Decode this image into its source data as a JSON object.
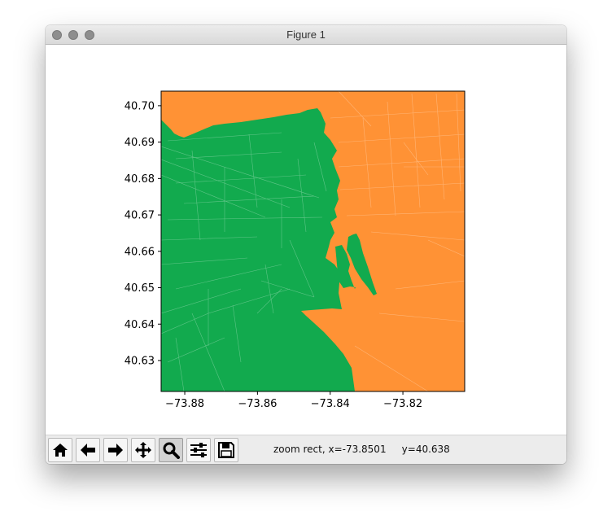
{
  "window": {
    "title": "Figure 1"
  },
  "toolbar": {
    "buttons": [
      {
        "name": "home-button",
        "icon": "home-icon"
      },
      {
        "name": "back-button",
        "icon": "arrow-left-icon"
      },
      {
        "name": "forward-button",
        "icon": "arrow-right-icon"
      },
      {
        "name": "pan-button",
        "icon": "move-icon"
      },
      {
        "name": "zoom-button",
        "icon": "magnifier-icon",
        "active": true
      },
      {
        "name": "subplots-button",
        "icon": "sliders-icon"
      },
      {
        "name": "save-button",
        "icon": "floppy-disk-icon"
      }
    ],
    "status_prefix": "zoom rect, x=-73.8501",
    "status_y": "y=40.638"
  },
  "colors": {
    "green": "#12AA4E",
    "orange": "#FF9235",
    "titlebar": "#e3e3e3",
    "toolbar": "#ececec"
  },
  "chart_data": {
    "type": "map",
    "xlabel": "",
    "ylabel": "",
    "xlim": [
      -73.8865,
      -73.803
    ],
    "ylim": [
      40.6215,
      40.704
    ],
    "x_ticks": [
      "−73.88",
      "−73.86",
      "−73.84",
      "−73.82"
    ],
    "x_tick_values": [
      -73.88,
      -73.86,
      -73.84,
      -73.82
    ],
    "y_ticks": [
      "40.63",
      "40.64",
      "40.65",
      "40.66",
      "40.67",
      "40.68",
      "40.69",
      "40.70"
    ],
    "y_tick_values": [
      40.63,
      40.64,
      40.65,
      40.66,
      40.67,
      40.68,
      40.69,
      40.7
    ],
    "regions": [
      {
        "name": "green-region",
        "color": "#12AA4E"
      },
      {
        "name": "orange-region",
        "color": "#FF9235"
      }
    ]
  }
}
